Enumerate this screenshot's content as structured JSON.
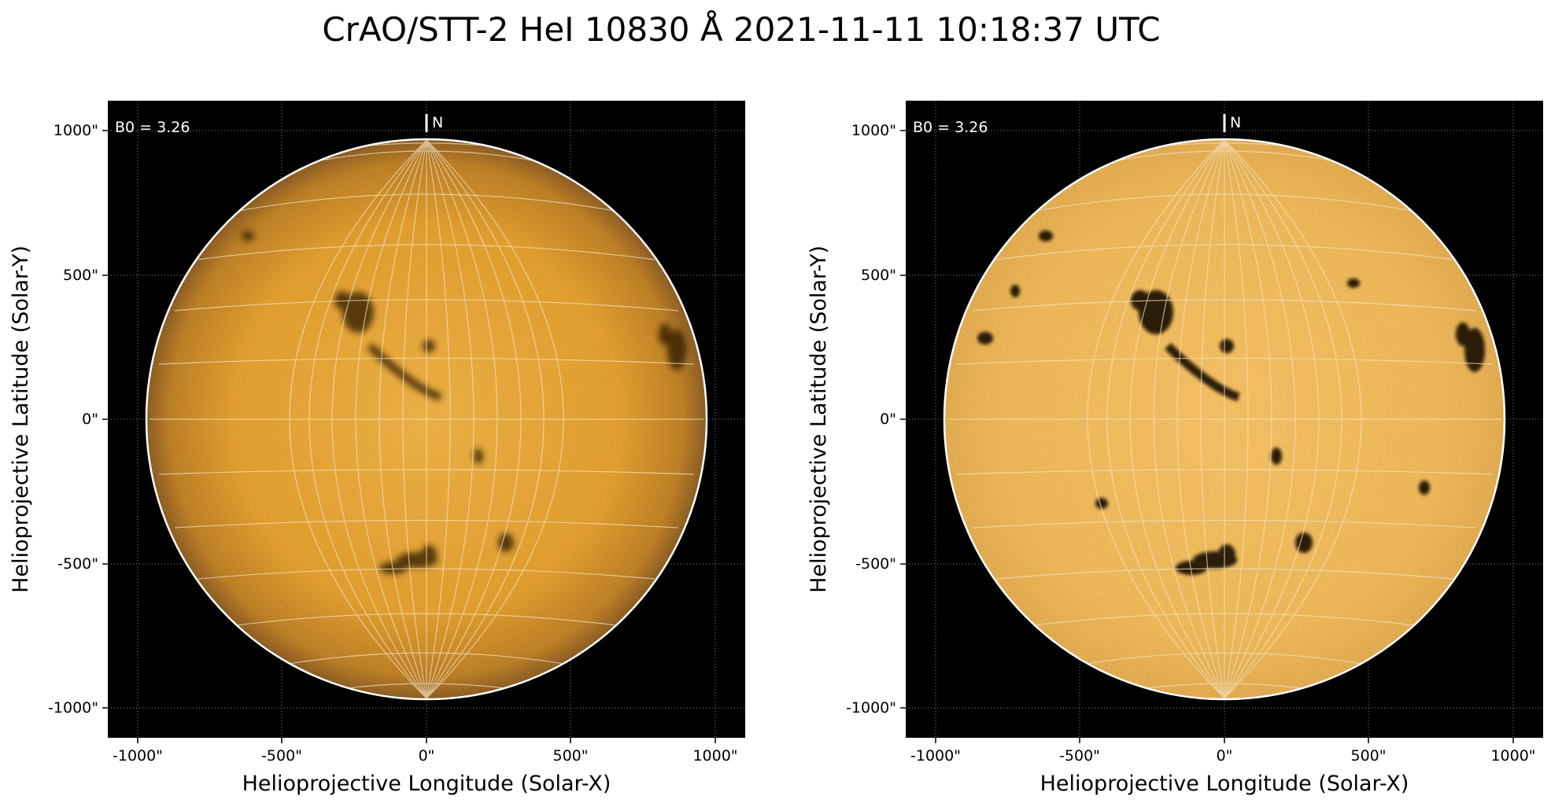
{
  "title": "CrAO/STT-2 HeI 10830 Å 2021-11-11 10:18:37 UTC",
  "panels": [
    {
      "name": "left",
      "b0_label": "B0 = 3.26",
      "north_label": "N",
      "xlabel": "Helioprojective Longitude (Solar-X)",
      "ylabel": "Helioprojective Latitude (Solar-Y)",
      "xticks": [
        "-1000\"",
        "-500\"",
        "0\"",
        "500\"",
        "1000\""
      ],
      "yticks": [
        "1000\"",
        "500\"",
        "0\"",
        "-500\"",
        "-1000\""
      ],
      "contrast": "normal"
    },
    {
      "name": "right",
      "b0_label": "B0 = 3.26",
      "north_label": "N",
      "xlabel": "Helioprojective Longitude (Solar-X)",
      "ylabel": "Helioprojective Latitude (Solar-Y)",
      "xticks": [
        "-1000\"",
        "-500\"",
        "0\"",
        "500\"",
        "1000\""
      ],
      "yticks": [
        "1000\"",
        "500\"",
        "0\"",
        "-500\"",
        "-1000\""
      ],
      "contrast": "enhanced"
    }
  ],
  "colors": {
    "disk": "#e0960e",
    "background": "#000000",
    "grid": "#f4e3c0",
    "limb": "#ffffff"
  }
}
